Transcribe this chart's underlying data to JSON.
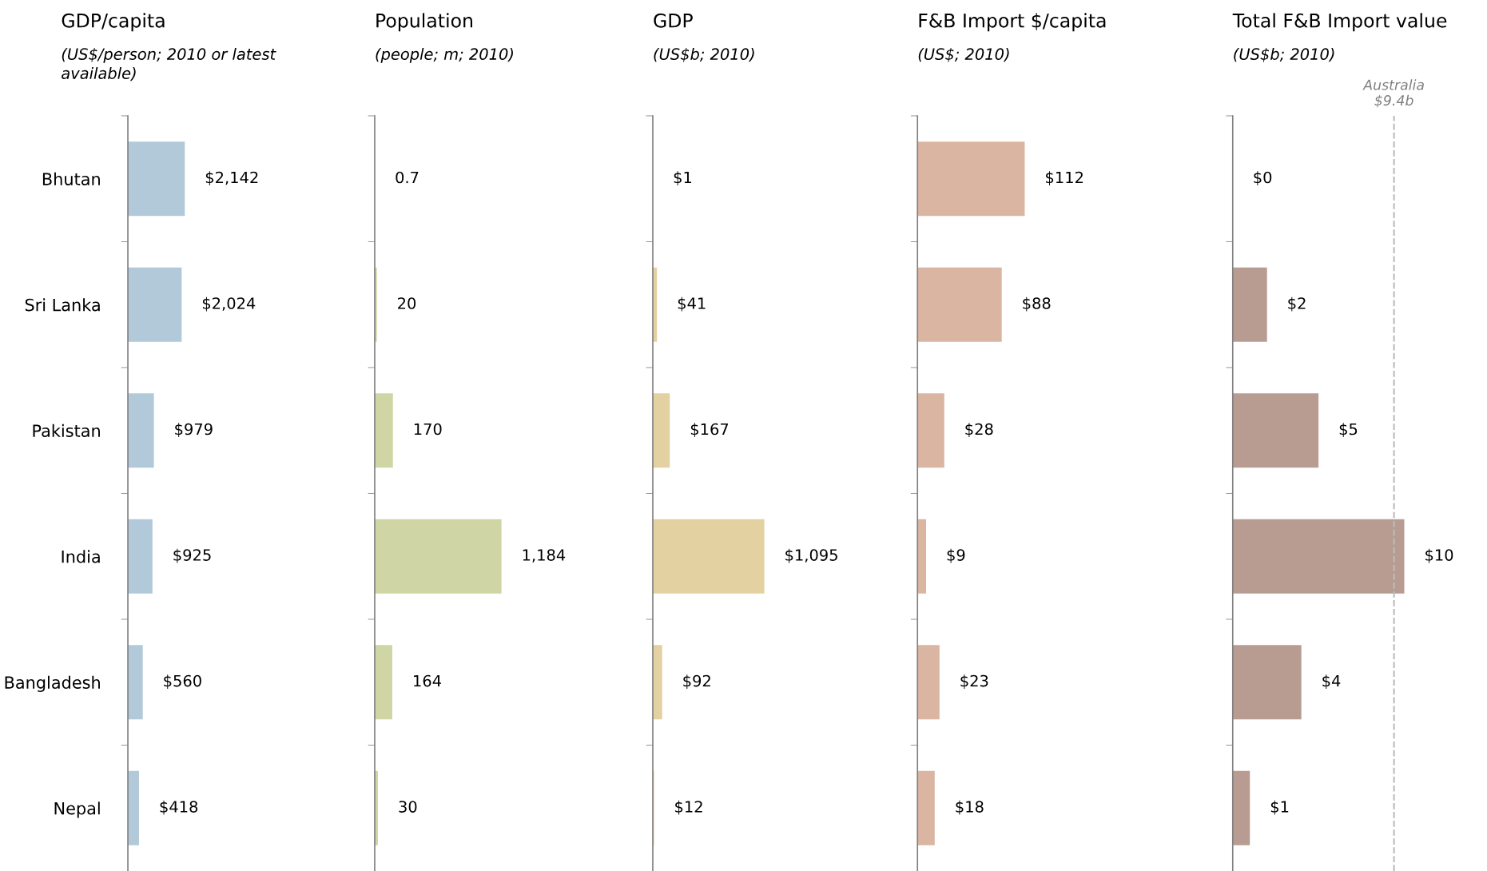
{
  "chart_data": [
    {
      "type": "bar",
      "orientation": "horizontal",
      "title": "GDP/capita",
      "subtitle": "(US$/person; 2010 or latest\navailable)",
      "categories": [
        "Bhutan",
        "Sri Lanka",
        "Pakistan",
        "India",
        "Bangladesh",
        "Nepal"
      ],
      "values": [
        2142,
        2024,
        979,
        925,
        560,
        418
      ],
      "value_labels": [
        "$2,142",
        "$2,024",
        "$979",
        "$925",
        "$560",
        "$418"
      ],
      "color": "#b1c9d8",
      "tick_labels": "y",
      "grid": false,
      "legend": false
    },
    {
      "type": "bar",
      "orientation": "horizontal",
      "title": "Population",
      "subtitle": "(people; m; 2010)",
      "categories": [
        null,
        null,
        null,
        null,
        null,
        null
      ],
      "values": [
        0.7,
        20,
        170,
        1184,
        164,
        30
      ],
      "value_labels": [
        "0.7",
        "20",
        "170",
        "1,184",
        "164",
        "30"
      ],
      "color": "#cfd5a5",
      "tick_labels": false,
      "grid": false,
      "legend": false
    },
    {
      "type": "bar",
      "orientation": "horizontal",
      "title": "GDP",
      "subtitle": "(US$b; 2010)",
      "categories": [
        null,
        null,
        null,
        null,
        null,
        null
      ],
      "values": [
        1,
        41,
        167,
        1095,
        92,
        12
      ],
      "value_labels": [
        "$1",
        "$41",
        "$167",
        "$1,095",
        "$92",
        "$12"
      ],
      "color": "#e3d1a1",
      "tick_labels": false,
      "grid": false,
      "legend": false
    },
    {
      "type": "bar",
      "orientation": "horizontal",
      "title": "F&B Import $/capita",
      "subtitle": "(US$; 2010)",
      "categories": [
        null,
        null,
        null,
        null,
        null,
        null
      ],
      "values": [
        112,
        88,
        28,
        9,
        23,
        18
      ],
      "value_labels": [
        "$112",
        "$88",
        "$28",
        "$9",
        "$23",
        "$18"
      ],
      "color": "#dab5a1",
      "tick_labels": false,
      "grid": false,
      "legend": false
    },
    {
      "type": "bar",
      "orientation": "horizontal",
      "title": "Total F&B Import value",
      "subtitle": "(US$b; 2010)",
      "categories": [
        null,
        null,
        null,
        null,
        null,
        null
      ],
      "values": [
        0,
        2,
        5,
        10,
        4,
        1
      ],
      "value_labels": [
        "$0",
        "$2",
        "$5",
        "$10",
        "$4",
        "$1"
      ],
      "color": "#b89c92",
      "tick_labels": false,
      "grid": false,
      "legend": false,
      "ref_lines": [
        {
          "axis": "x",
          "value": 9.4,
          "label": "Australia\n$9.4b",
          "color": "#bbbbbb",
          "line_style": "dashed"
        }
      ]
    }
  ]
}
